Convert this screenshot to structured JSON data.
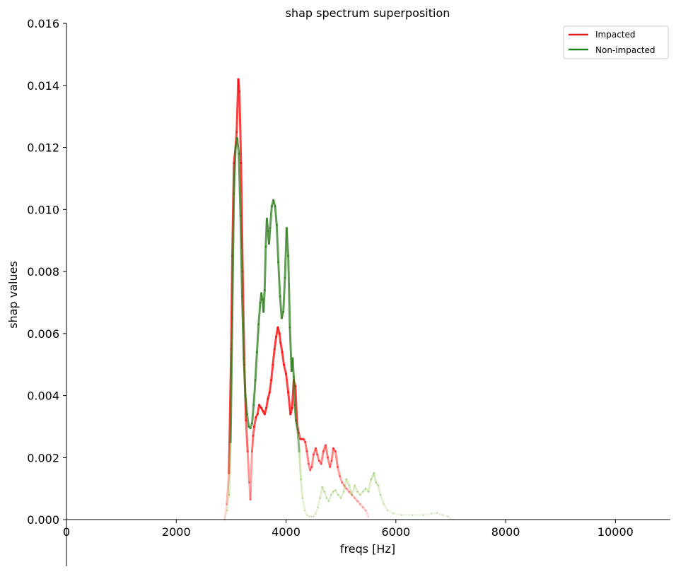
{
  "chart_data": {
    "type": "line",
    "title": "shap spectrum superposition",
    "xlabel": "freqs [Hz]",
    "ylabel": "shap values",
    "xlim": [
      0,
      11000
    ],
    "ylim": [
      -0.0015,
      0.016
    ],
    "xticks": [
      0,
      2000,
      4000,
      6000,
      8000,
      10000
    ],
    "xtick_labels": [
      "0",
      "2000",
      "4000",
      "6000",
      "8000",
      "10000"
    ],
    "yticks": [
      0.0,
      0.002,
      0.004,
      0.006,
      0.008,
      0.01,
      0.012,
      0.014,
      0.016
    ],
    "ytick_labels": [
      "0.000",
      "0.002",
      "0.004",
      "0.006",
      "0.008",
      "0.010",
      "0.012",
      "0.014",
      "0.016"
    ],
    "grid": false,
    "legend_position": "top-right",
    "series": [
      {
        "name": "Impacted",
        "color": "#ff0000",
        "legend_color": "#e41a1c",
        "x": [
          2880,
          2920,
          2960,
          3000,
          3020,
          3050,
          3080,
          3100,
          3130,
          3150,
          3180,
          3210,
          3240,
          3270,
          3300,
          3330,
          3350,
          3380,
          3400,
          3420,
          3450,
          3480,
          3510,
          3550,
          3580,
          3610,
          3640,
          3670,
          3700,
          3730,
          3760,
          3790,
          3820,
          3850,
          3880,
          3900,
          3930,
          3960,
          4000,
          4040,
          4080,
          4110,
          4140,
          4170,
          4200,
          4230,
          4260,
          4290,
          4320,
          4350,
          4380,
          4410,
          4440,
          4470,
          4500,
          4540,
          4570,
          4600,
          4640,
          4680,
          4720,
          4760,
          4800,
          4830,
          4860,
          4900,
          4940,
          4980,
          5020,
          5060,
          5100,
          5150,
          5200,
          5250,
          5300,
          5350,
          5400,
          5450,
          5500
        ],
        "y": [
          0.0,
          0.0005,
          0.0015,
          0.0055,
          0.0085,
          0.0115,
          0.012,
          0.0125,
          0.0142,
          0.0138,
          0.0115,
          0.008,
          0.005,
          0.0032,
          0.0022,
          0.0012,
          0.00065,
          0.0022,
          0.0027,
          0.003,
          0.0033,
          0.0034,
          0.0037,
          0.0036,
          0.0035,
          0.0034,
          0.0036,
          0.0039,
          0.0041,
          0.0045,
          0.005,
          0.0055,
          0.0059,
          0.0062,
          0.006,
          0.0057,
          0.0054,
          0.005,
          0.0047,
          0.0041,
          0.0034,
          0.0036,
          0.0045,
          0.0043,
          0.0031,
          0.0028,
          0.0026,
          0.0026,
          0.0026,
          0.0025,
          0.0022,
          0.0018,
          0.0016,
          0.0017,
          0.0021,
          0.0023,
          0.0021,
          0.0019,
          0.0018,
          0.0022,
          0.0024,
          0.002,
          0.0017,
          0.0019,
          0.0023,
          0.0022,
          0.0017,
          0.0014,
          0.0012,
          0.0011,
          0.001,
          0.0009,
          0.0008,
          0.0007,
          0.0006,
          0.0005,
          0.0004,
          0.0003,
          0.0001
        ]
      },
      {
        "name": "Non-impacted",
        "color": "#2e7d1e",
        "legend_color": "#1a801a",
        "x": [
          2880,
          2930,
          2960,
          2990,
          3020,
          3050,
          3080,
          3110,
          3140,
          3170,
          3200,
          3230,
          3260,
          3290,
          3320,
          3350,
          3380,
          3410,
          3440,
          3470,
          3500,
          3530,
          3550,
          3570,
          3590,
          3610,
          3630,
          3650,
          3670,
          3690,
          3710,
          3740,
          3770,
          3800,
          3830,
          3860,
          3890,
          3920,
          3950,
          3980,
          4010,
          4040,
          4070,
          4100,
          4120,
          4140,
          4160,
          4180,
          4210,
          4240,
          4270,
          4300,
          4340,
          4380,
          4420,
          4460,
          4500,
          4540,
          4580,
          4620,
          4660,
          4700,
          4740,
          4780,
          4820,
          4860,
          4900,
          4950,
          5000,
          5050,
          5100,
          5150,
          5200,
          5250,
          5300,
          5350,
          5400,
          5450,
          5500,
          5550,
          5600,
          5640,
          5680,
          5720,
          5780,
          5850,
          5950,
          6100,
          6300,
          6500,
          6650,
          6750,
          6850,
          6950,
          7050
        ],
        "y": [
          0.0,
          0.0003,
          0.0008,
          0.0025,
          0.0065,
          0.0105,
          0.012,
          0.0123,
          0.0118,
          0.0098,
          0.0072,
          0.0052,
          0.004,
          0.0034,
          0.003,
          0.00295,
          0.0031,
          0.0037,
          0.0045,
          0.0054,
          0.0063,
          0.007,
          0.0073,
          0.0071,
          0.0067,
          0.0074,
          0.0088,
          0.0097,
          0.0093,
          0.0089,
          0.0094,
          0.0101,
          0.0103,
          0.0101,
          0.0095,
          0.0083,
          0.0072,
          0.0065,
          0.0067,
          0.0078,
          0.0094,
          0.0085,
          0.0062,
          0.0048,
          0.0052,
          0.0046,
          0.0037,
          0.0032,
          0.0029,
          0.0022,
          0.0013,
          0.0007,
          0.0003,
          0.00015,
          0.0001,
          0.0001,
          0.0001,
          0.0002,
          0.0004,
          0.0007,
          0.00105,
          0.0009,
          0.0007,
          0.0006,
          0.0008,
          0.0009,
          0.00095,
          0.0008,
          0.0007,
          0.0009,
          0.0013,
          0.0011,
          0.0008,
          0.0011,
          0.0009,
          0.0008,
          0.0009,
          0.001,
          0.0009,
          0.0013,
          0.0015,
          0.0012,
          0.0011,
          0.0008,
          0.0005,
          0.0003,
          0.0002,
          0.00015,
          0.00015,
          0.00015,
          0.0002,
          0.00022,
          0.00015,
          0.0001,
          0.0
        ]
      }
    ]
  }
}
